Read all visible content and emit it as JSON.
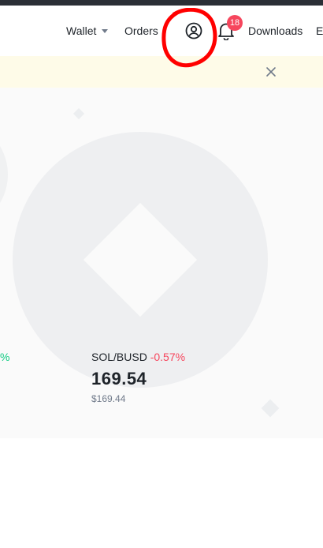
{
  "header": {
    "nav": {
      "wallet": "Wallet",
      "orders": "Orders",
      "downloads": "Downloads",
      "more_truncated": "E"
    },
    "notifications": {
      "badge_count": "18"
    },
    "icons": {
      "wallet_caret": "caret-down-icon",
      "profile": "user-circle-icon",
      "bell": "bell-icon"
    }
  },
  "notice_bar": {
    "background": "#fefbe8",
    "close_icon": "close-icon"
  },
  "market": {
    "left_card": {
      "change": "%"
    },
    "card": {
      "pair": "SOL/BUSD",
      "change": "-0.57%",
      "price": "169.54",
      "usd_price": "$169.44"
    }
  },
  "colors": {
    "positive": "#0ecb81",
    "negative": "#f6465d",
    "text_primary": "#1e2329",
    "text_secondary": "#707a8a",
    "badge": "#f6465d",
    "annotation": "#ff0000"
  }
}
